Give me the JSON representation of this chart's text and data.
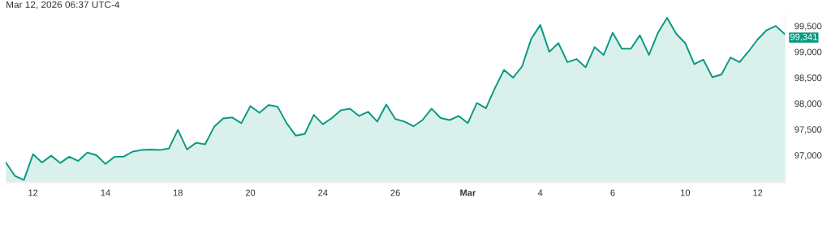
{
  "chart_data": {
    "type": "area",
    "title": "Mar 12, 2026 06:37 UTC-4",
    "categories": [
      null,
      null,
      null,
      "12",
      null,
      null,
      null,
      null,
      null,
      null,
      null,
      "14",
      null,
      null,
      null,
      null,
      null,
      null,
      null,
      "18",
      null,
      null,
      null,
      null,
      null,
      null,
      null,
      "20",
      null,
      null,
      null,
      null,
      null,
      null,
      null,
      "24",
      null,
      null,
      null,
      null,
      null,
      null,
      null,
      "26",
      null,
      null,
      null,
      null,
      null,
      null,
      null,
      "Mar",
      null,
      null,
      null,
      null,
      null,
      null,
      null,
      "4",
      null,
      null,
      null,
      null,
      null,
      null,
      null,
      "6",
      null,
      null,
      null,
      null,
      null,
      null,
      null,
      "10",
      null,
      null,
      null,
      null,
      null,
      null,
      null,
      "12",
      null,
      null,
      null
    ],
    "series": [
      {
        "color": "#089981",
        "values": [
          96860,
          96600,
          96520,
          97020,
          96860,
          96990,
          96850,
          96970,
          96890,
          97050,
          97000,
          96830,
          96970,
          96970,
          97070,
          97100,
          97110,
          97100,
          97130,
          97490,
          97110,
          97240,
          97210,
          97550,
          97710,
          97730,
          97620,
          97950,
          97820,
          97970,
          97940,
          97620,
          97380,
          97410,
          97780,
          97600,
          97720,
          97870,
          97900,
          97760,
          97840,
          97650,
          97980,
          97700,
          97650,
          97560,
          97680,
          97900,
          97720,
          97680,
          97760,
          97620,
          98010,
          97910,
          98300,
          98650,
          98500,
          98720,
          99250,
          99520,
          99000,
          99170,
          98800,
          98860,
          98700,
          99090,
          98940,
          99370,
          99060,
          99060,
          99320,
          98940,
          99370,
          99660,
          99350,
          99170,
          98760,
          98850,
          98510,
          98560,
          98890,
          98800,
          99010,
          99240,
          99420,
          99500,
          99340
        ]
      }
    ],
    "ylim": [
      96470,
      99720
    ],
    "yticks": [
      {
        "value": 97000,
        "label": "97,000"
      },
      {
        "value": 97500,
        "label": "97,500"
      },
      {
        "value": 98000,
        "label": "98,000"
      },
      {
        "value": 98500,
        "label": "98,500"
      },
      {
        "value": 99000,
        "label": "99,000"
      },
      {
        "value": 99500,
        "label": "99,500"
      }
    ],
    "annotations": [
      "99,341"
    ],
    "grid": false,
    "legend": false
  }
}
